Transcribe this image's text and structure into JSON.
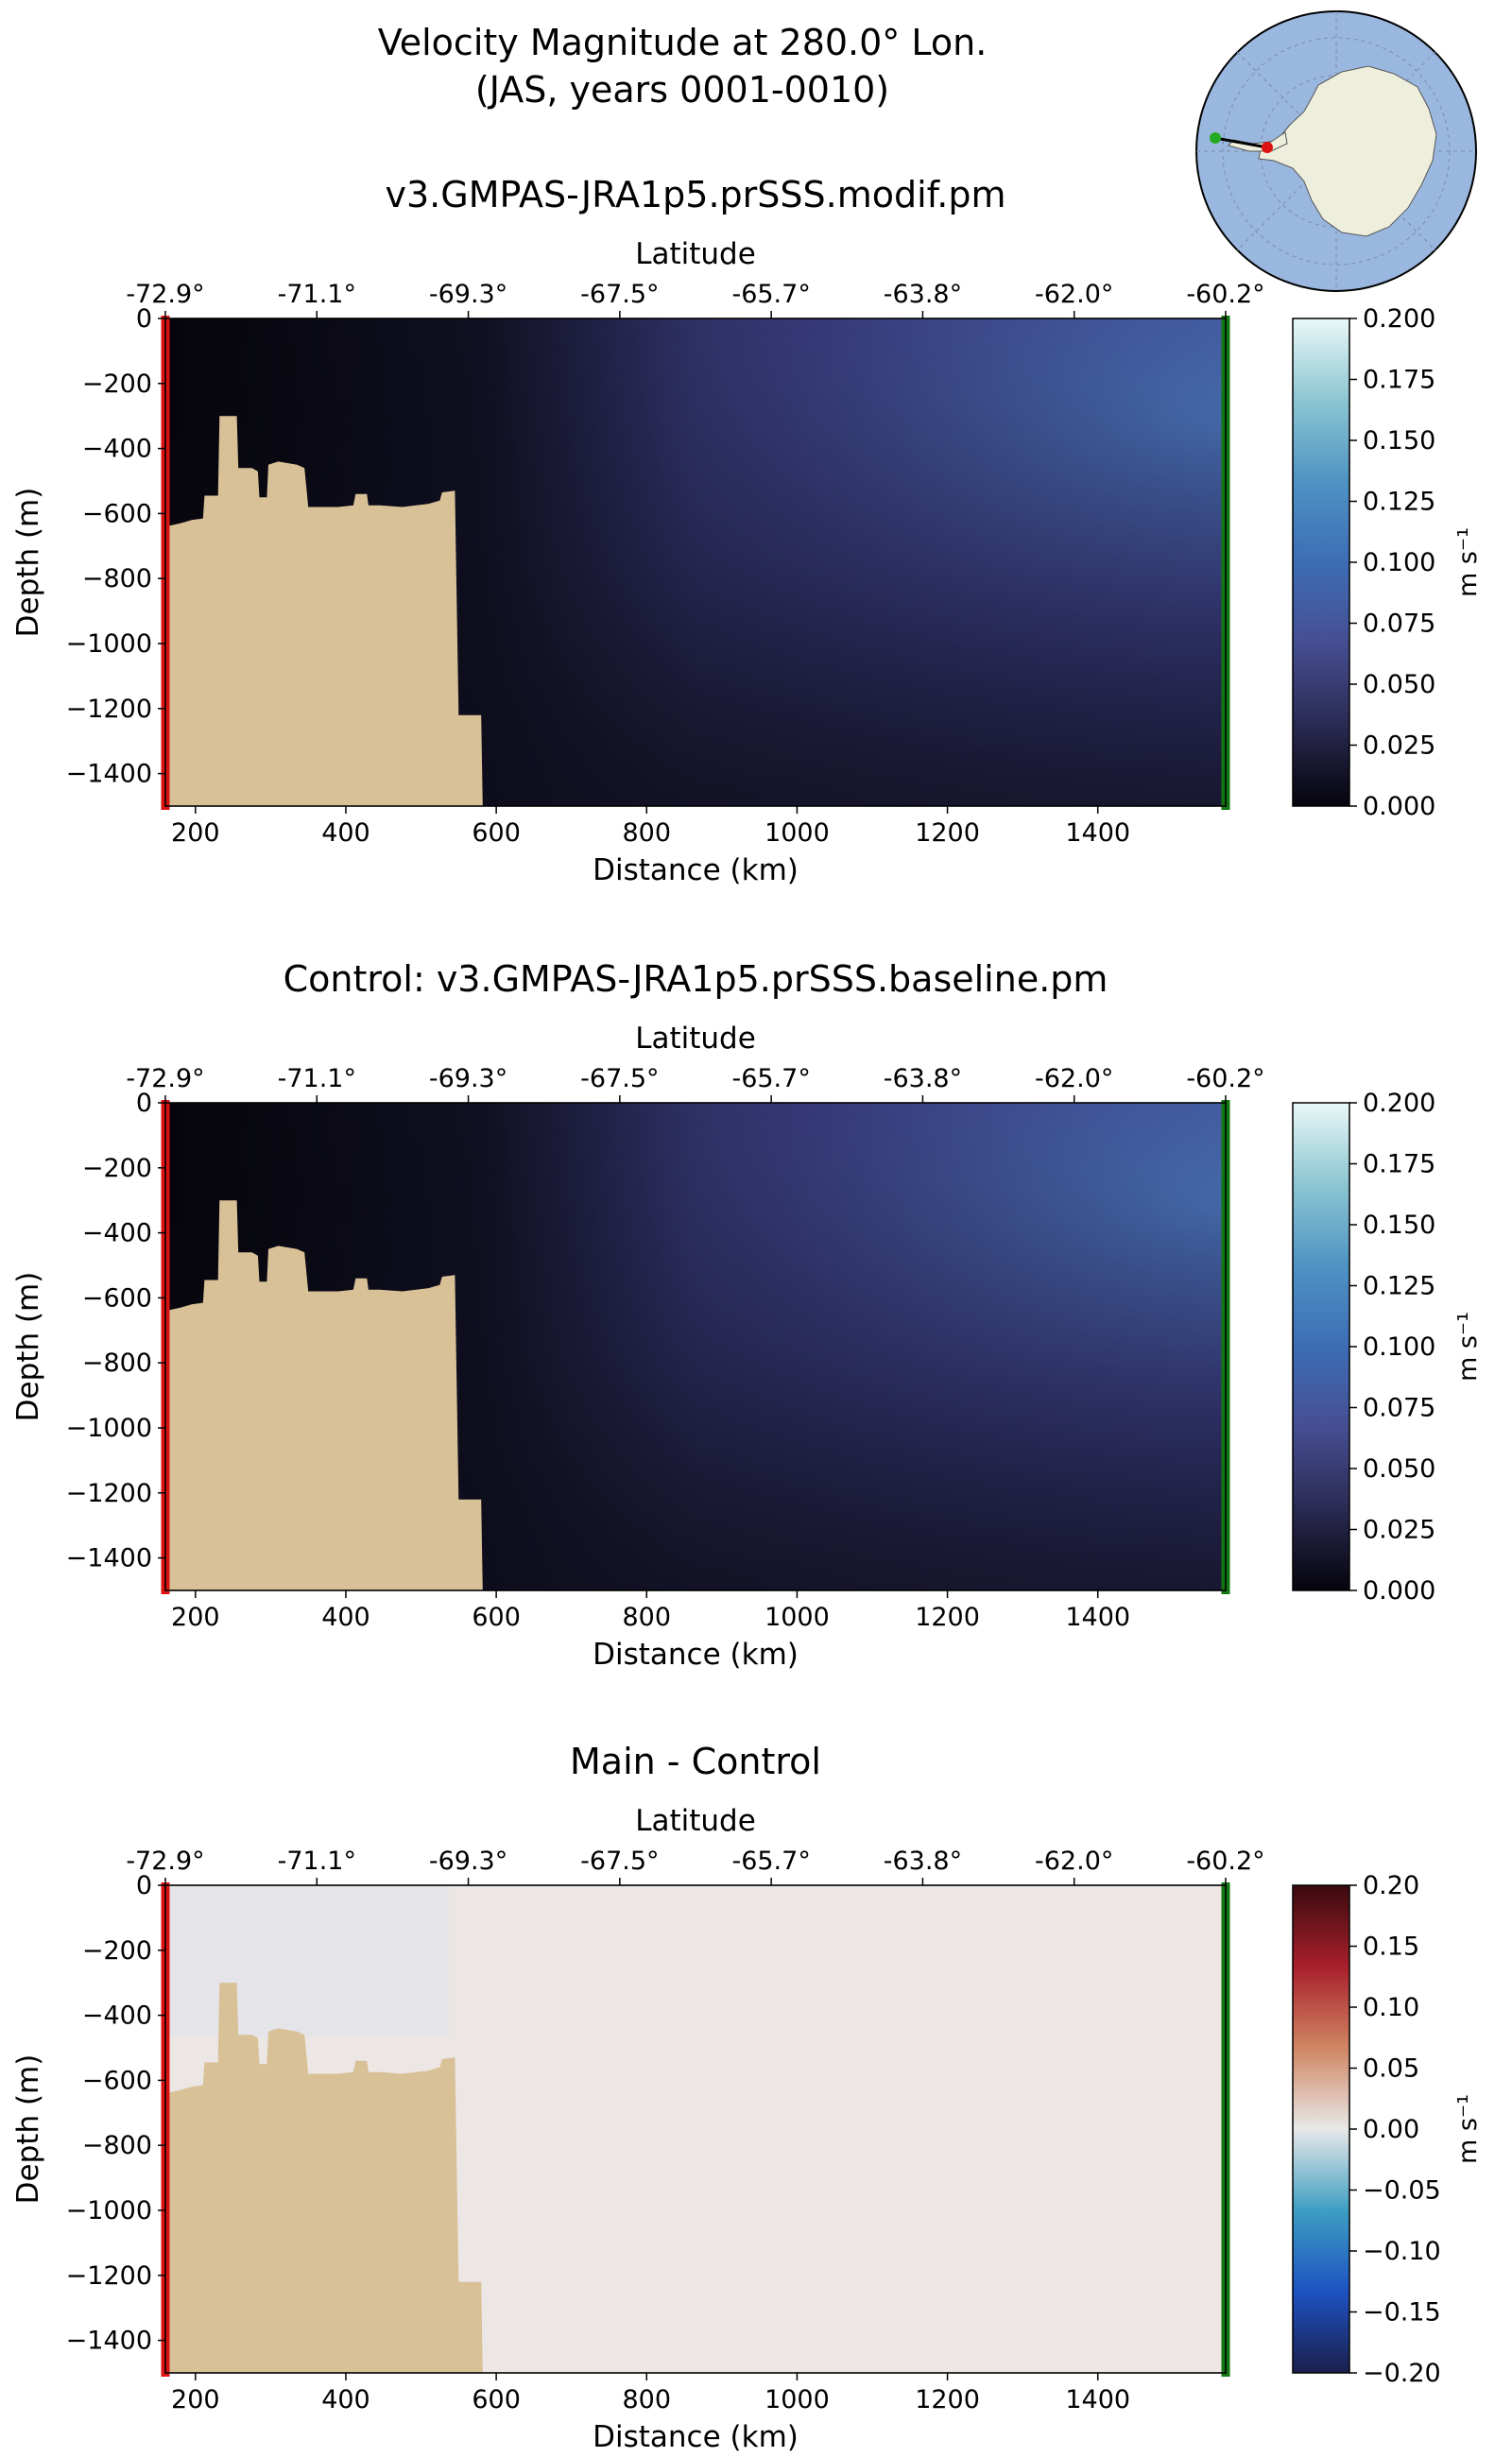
{
  "title_line1": "Velocity Magnitude at 280.0° Lon.",
  "title_line2": "(JAS, years 0001-0010)",
  "inset_map": {
    "ocean_color": "#9ab8df",
    "land_color": "#eeeedd",
    "section_start_color": "#22aa22",
    "section_end_color": "#dd1111"
  },
  "chart_data": [
    {
      "type": "heatmap",
      "title": "v3.GMPAS-JRA1p5.prSSS.modif.pm",
      "top_axis_label": "Latitude",
      "latitude_ticks": [
        "-72.9°",
        "-71.1°",
        "-69.3°",
        "-67.5°",
        "-65.7°",
        "-63.8°",
        "-62.0°",
        "-60.2°"
      ],
      "xlabel": "Distance (km)",
      "ylabel": "Depth (m)",
      "xlim": [
        160,
        1570
      ],
      "ylim": [
        -1500,
        0
      ],
      "x_ticks": [
        200,
        400,
        600,
        800,
        1000,
        1200,
        1400
      ],
      "x_tick_labels": [
        "200",
        "400",
        "600",
        "800",
        "1000",
        "1200",
        "1400"
      ],
      "y_ticks": [
        0,
        -200,
        -400,
        -600,
        -800,
        -1000,
        -1200,
        -1400
      ],
      "y_tick_labels": [
        "0",
        "−200",
        "−400",
        "−600",
        "−800",
        "−1000",
        "−1200",
        "−1400"
      ],
      "colorbar": {
        "label": "m s⁻¹",
        "range": [
          0,
          0.2
        ],
        "ticks": [
          "0.000",
          "0.025",
          "0.050",
          "0.075",
          "0.100",
          "0.125",
          "0.150",
          "0.175",
          "0.200"
        ],
        "colors": [
          "#05040c",
          "#2a2a52",
          "#464e92",
          "#3d6db5",
          "#4f93c4",
          "#8cc6d2",
          "#eaf8f8"
        ]
      },
      "field_description": "weak flow near shelf (<0.01), increasing offshore to ~0.06-0.08 in upper 600 m near 1300-1500 km",
      "grid": false
    },
    {
      "type": "heatmap",
      "title": "Control: v3.GMPAS-JRA1p5.prSSS.baseline.pm",
      "top_axis_label": "Latitude",
      "latitude_ticks": [
        "-72.9°",
        "-71.1°",
        "-69.3°",
        "-67.5°",
        "-65.7°",
        "-63.8°",
        "-62.0°",
        "-60.2°"
      ],
      "xlabel": "Distance (km)",
      "ylabel": "Depth (m)",
      "xlim": [
        160,
        1570
      ],
      "ylim": [
        -1500,
        0
      ],
      "x_ticks": [
        200,
        400,
        600,
        800,
        1000,
        1200,
        1400
      ],
      "x_tick_labels": [
        "200",
        "400",
        "600",
        "800",
        "1000",
        "1200",
        "1400"
      ],
      "y_ticks": [
        0,
        -200,
        -400,
        -600,
        -800,
        -1000,
        -1200,
        -1400
      ],
      "y_tick_labels": [
        "0",
        "−200",
        "−400",
        "−600",
        "−800",
        "−1000",
        "−1200",
        "−1400"
      ],
      "colorbar": {
        "label": "m s⁻¹",
        "range": [
          0,
          0.2
        ],
        "ticks": [
          "0.000",
          "0.025",
          "0.050",
          "0.075",
          "0.100",
          "0.125",
          "0.150",
          "0.175",
          "0.200"
        ],
        "colors": [
          "#05040c",
          "#2a2a52",
          "#464e92",
          "#3d6db5",
          "#4f93c4",
          "#8cc6d2",
          "#eaf8f8"
        ]
      },
      "grid": false
    },
    {
      "type": "heatmap",
      "title": "Main - Control",
      "top_axis_label": "Latitude",
      "latitude_ticks": [
        "-72.9°",
        "-71.1°",
        "-69.3°",
        "-67.5°",
        "-65.7°",
        "-63.8°",
        "-62.0°",
        "-60.2°"
      ],
      "xlabel": "Distance (km)",
      "ylabel": "Depth (m)",
      "xlim": [
        160,
        1570
      ],
      "ylim": [
        -1500,
        0
      ],
      "x_ticks": [
        200,
        400,
        600,
        800,
        1000,
        1200,
        1400
      ],
      "x_tick_labels": [
        "200",
        "400",
        "600",
        "800",
        "1000",
        "1200",
        "1400"
      ],
      "y_ticks": [
        0,
        -200,
        -400,
        -600,
        -800,
        -1000,
        -1200,
        -1400
      ],
      "y_tick_labels": [
        "0",
        "−200",
        "−400",
        "−600",
        "−800",
        "−1000",
        "−1200",
        "−1400"
      ],
      "colorbar": {
        "label": "m s⁻¹",
        "range": [
          -0.2,
          0.2
        ],
        "ticks": [
          "−0.20",
          "−0.15",
          "−0.10",
          "−0.05",
          "0.00",
          "0.05",
          "0.10",
          "0.15",
          "0.20"
        ],
        "colors": [
          "#1c1f4d",
          "#1d52c2",
          "#3e9ec2",
          "#e8e8e8",
          "#d08562",
          "#a8202c",
          "#3a0a0e"
        ]
      },
      "field_description": "differences near zero everywhere (~0.00)",
      "grid": false
    }
  ],
  "topography_km_m": [
    [
      160,
      -640
    ],
    [
      180,
      -630
    ],
    [
      195,
      -620
    ],
    [
      210,
      -615
    ],
    [
      212,
      -545
    ],
    [
      230,
      -545
    ],
    [
      232,
      -300
    ],
    [
      255,
      -300
    ],
    [
      257,
      -460
    ],
    [
      275,
      -460
    ],
    [
      283,
      -470
    ],
    [
      285,
      -550
    ],
    [
      295,
      -550
    ],
    [
      297,
      -450
    ],
    [
      310,
      -440
    ],
    [
      335,
      -450
    ],
    [
      345,
      -460
    ],
    [
      350,
      -580
    ],
    [
      390,
      -580
    ],
    [
      410,
      -575
    ],
    [
      413,
      -540
    ],
    [
      428,
      -540
    ],
    [
      430,
      -575
    ],
    [
      445,
      -575
    ],
    [
      475,
      -580
    ],
    [
      510,
      -570
    ],
    [
      525,
      -560
    ],
    [
      528,
      -535
    ],
    [
      545,
      -530
    ],
    [
      550,
      -1220
    ],
    [
      580,
      -1220
    ],
    [
      582,
      -1500
    ],
    [
      160,
      -1500
    ]
  ],
  "colors": {
    "land": "#d8c097",
    "section_start": "#dd1111",
    "section_end": "#117711"
  }
}
